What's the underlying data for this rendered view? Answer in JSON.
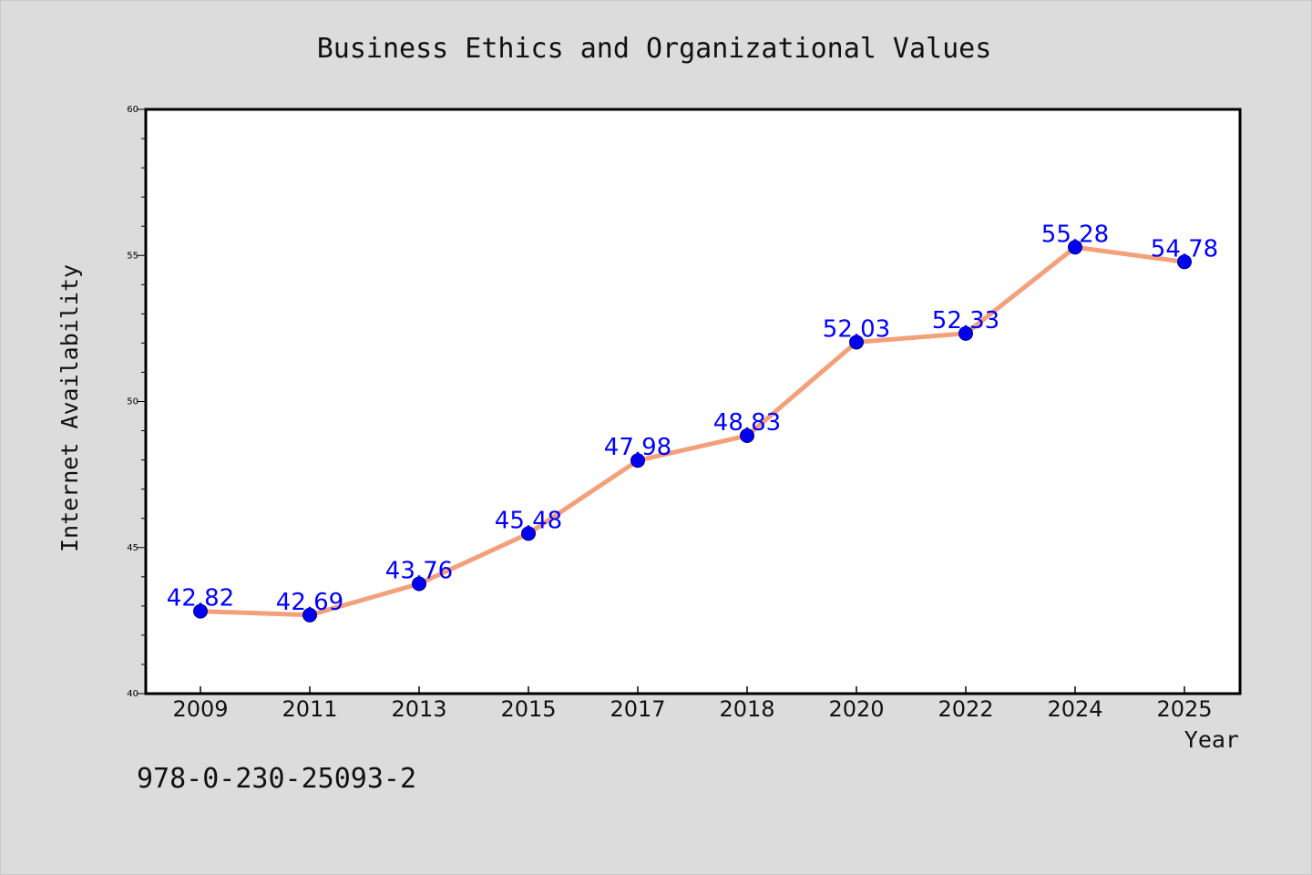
{
  "chart_data": {
    "type": "line",
    "title": "Business Ethics and Organizational Values",
    "xlabel": "Year",
    "ylabel": "Internet Availability",
    "categories": [
      "2009",
      "2011",
      "2013",
      "2015",
      "2017",
      "2018",
      "2020",
      "2022",
      "2024",
      "2025"
    ],
    "series": [
      {
        "values": [
          42.82,
          42.69,
          43.76,
          45.48,
          47.98,
          48.83,
          52.03,
          52.33,
          55.28,
          54.78
        ],
        "labels": [
          "42.82",
          "42.69",
          "43.76",
          "45.48",
          "47.98",
          "48.83",
          "52.03",
          "52.33",
          "55.28",
          "54.78"
        ],
        "line_color": "#f4a07a",
        "marker_color": "#0000ee",
        "label_color": "#0000ff"
      }
    ],
    "ylim": [
      40,
      60
    ],
    "yticks": [
      "40",
      "45",
      "50",
      "55",
      "60"
    ],
    "grid": false,
    "legend": "none"
  },
  "footnote": "978-0-230-25093-2",
  "colors": {
    "background": "#dcdcdc",
    "plot_background": "#ffffff",
    "axes": "#000000"
  }
}
